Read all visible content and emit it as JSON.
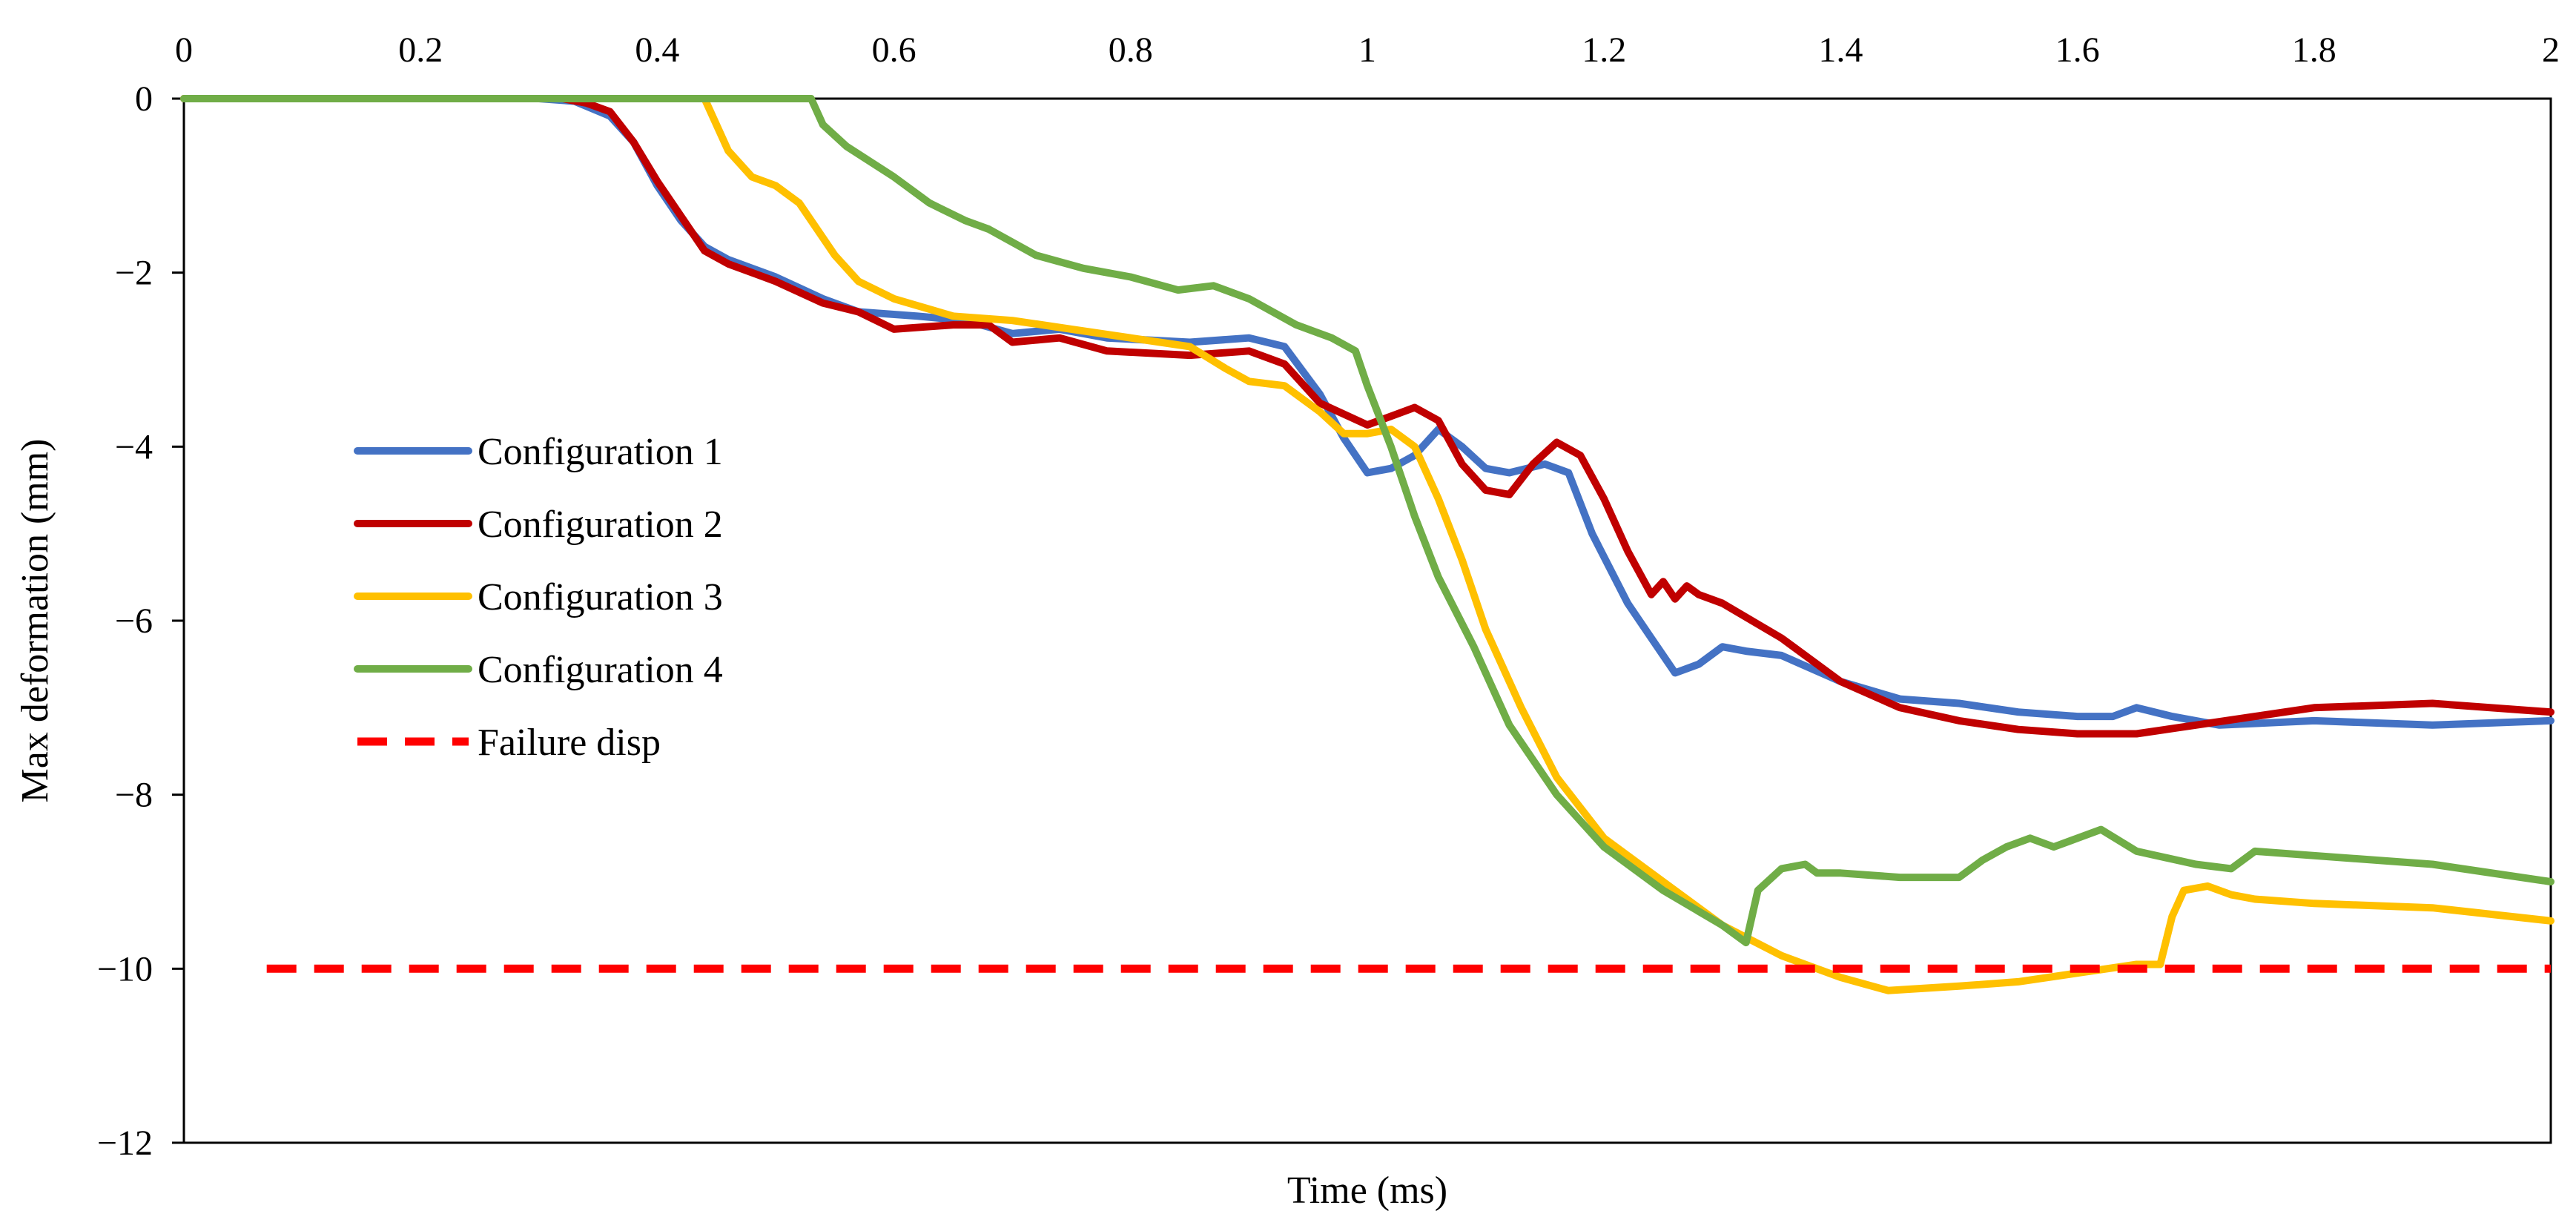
{
  "chart_data": {
    "type": "line",
    "title": "",
    "xlabel": "Time (ms)",
    "ylabel": "Max deformation (mm)",
    "xlim": [
      0,
      2
    ],
    "ylim": [
      -12,
      0
    ],
    "x_ticks": [
      0,
      0.2,
      0.4,
      0.6,
      0.8,
      1,
      1.2,
      1.4,
      1.6,
      1.8,
      2
    ],
    "x_tick_labels": [
      "0",
      "0.2",
      "0.4",
      "0.6",
      "0.8",
      "1",
      "1.2",
      "1.4",
      "1.6",
      "1.8",
      "2"
    ],
    "y_ticks": [
      0,
      -2,
      -4,
      -6,
      -8,
      -10,
      -12
    ],
    "y_tick_labels": [
      "0",
      "−2",
      "−4",
      "−6",
      "−8",
      "−10",
      "−12"
    ],
    "x_axis_position": "top",
    "grid": false,
    "legend_position": "left-middle",
    "series": [
      {
        "name": "Configuration 1",
        "color": "#4472C4",
        "style": "solid",
        "points": [
          [
            0,
            0
          ],
          [
            0.3,
            0
          ],
          [
            0.33,
            -0.03
          ],
          [
            0.36,
            -0.2
          ],
          [
            0.38,
            -0.5
          ],
          [
            0.4,
            -1.0
          ],
          [
            0.42,
            -1.4
          ],
          [
            0.44,
            -1.7
          ],
          [
            0.46,
            -1.85
          ],
          [
            0.5,
            -2.05
          ],
          [
            0.54,
            -2.3
          ],
          [
            0.57,
            -2.45
          ],
          [
            0.62,
            -2.5
          ],
          [
            0.66,
            -2.55
          ],
          [
            0.7,
            -2.7
          ],
          [
            0.74,
            -2.65
          ],
          [
            0.78,
            -2.75
          ],
          [
            0.85,
            -2.8
          ],
          [
            0.9,
            -2.75
          ],
          [
            0.93,
            -2.85
          ],
          [
            0.96,
            -3.4
          ],
          [
            0.98,
            -3.9
          ],
          [
            1.0,
            -4.3
          ],
          [
            1.02,
            -4.25
          ],
          [
            1.04,
            -4.1
          ],
          [
            1.06,
            -3.8
          ],
          [
            1.08,
            -4.0
          ],
          [
            1.1,
            -4.25
          ],
          [
            1.12,
            -4.3
          ],
          [
            1.15,
            -4.2
          ],
          [
            1.17,
            -4.3
          ],
          [
            1.19,
            -5.0
          ],
          [
            1.22,
            -5.8
          ],
          [
            1.24,
            -6.2
          ],
          [
            1.26,
            -6.6
          ],
          [
            1.28,
            -6.5
          ],
          [
            1.3,
            -6.3
          ],
          [
            1.32,
            -6.35
          ],
          [
            1.35,
            -6.4
          ],
          [
            1.4,
            -6.7
          ],
          [
            1.45,
            -6.9
          ],
          [
            1.5,
            -6.95
          ],
          [
            1.55,
            -7.05
          ],
          [
            1.6,
            -7.1
          ],
          [
            1.63,
            -7.1
          ],
          [
            1.65,
            -7.0
          ],
          [
            1.68,
            -7.1
          ],
          [
            1.72,
            -7.2
          ],
          [
            1.8,
            -7.15
          ],
          [
            1.9,
            -7.2
          ],
          [
            2.0,
            -7.15
          ]
        ]
      },
      {
        "name": "Configuration 2",
        "color": "#C00000",
        "style": "solid",
        "points": [
          [
            0,
            0
          ],
          [
            0.32,
            0
          ],
          [
            0.34,
            -0.05
          ],
          [
            0.36,
            -0.15
          ],
          [
            0.38,
            -0.5
          ],
          [
            0.4,
            -0.95
          ],
          [
            0.42,
            -1.35
          ],
          [
            0.44,
            -1.75
          ],
          [
            0.46,
            -1.9
          ],
          [
            0.5,
            -2.1
          ],
          [
            0.54,
            -2.35
          ],
          [
            0.57,
            -2.45
          ],
          [
            0.6,
            -2.65
          ],
          [
            0.65,
            -2.6
          ],
          [
            0.68,
            -2.6
          ],
          [
            0.7,
            -2.8
          ],
          [
            0.74,
            -2.75
          ],
          [
            0.78,
            -2.9
          ],
          [
            0.85,
            -2.95
          ],
          [
            0.9,
            -2.9
          ],
          [
            0.93,
            -3.05
          ],
          [
            0.96,
            -3.5
          ],
          [
            1.0,
            -3.75
          ],
          [
            1.02,
            -3.65
          ],
          [
            1.04,
            -3.55
          ],
          [
            1.06,
            -3.7
          ],
          [
            1.08,
            -4.2
          ],
          [
            1.1,
            -4.5
          ],
          [
            1.12,
            -4.55
          ],
          [
            1.14,
            -4.2
          ],
          [
            1.16,
            -3.95
          ],
          [
            1.18,
            -4.1
          ],
          [
            1.2,
            -4.6
          ],
          [
            1.22,
            -5.2
          ],
          [
            1.24,
            -5.7
          ],
          [
            1.25,
            -5.55
          ],
          [
            1.26,
            -5.75
          ],
          [
            1.27,
            -5.6
          ],
          [
            1.28,
            -5.7
          ],
          [
            1.3,
            -5.8
          ],
          [
            1.35,
            -6.2
          ],
          [
            1.4,
            -6.7
          ],
          [
            1.45,
            -7.0
          ],
          [
            1.5,
            -7.15
          ],
          [
            1.55,
            -7.25
          ],
          [
            1.6,
            -7.3
          ],
          [
            1.65,
            -7.3
          ],
          [
            1.7,
            -7.2
          ],
          [
            1.75,
            -7.1
          ],
          [
            1.8,
            -7.0
          ],
          [
            1.9,
            -6.95
          ],
          [
            2.0,
            -7.05
          ]
        ]
      },
      {
        "name": "Configuration 3",
        "color": "#FFC000",
        "style": "solid",
        "points": [
          [
            0,
            0
          ],
          [
            0.44,
            0
          ],
          [
            0.46,
            -0.6
          ],
          [
            0.48,
            -0.9
          ],
          [
            0.5,
            -1.0
          ],
          [
            0.52,
            -1.2
          ],
          [
            0.55,
            -1.8
          ],
          [
            0.57,
            -2.1
          ],
          [
            0.6,
            -2.3
          ],
          [
            0.65,
            -2.5
          ],
          [
            0.7,
            -2.55
          ],
          [
            0.75,
            -2.65
          ],
          [
            0.8,
            -2.75
          ],
          [
            0.85,
            -2.85
          ],
          [
            0.88,
            -3.1
          ],
          [
            0.9,
            -3.25
          ],
          [
            0.93,
            -3.3
          ],
          [
            0.96,
            -3.6
          ],
          [
            0.98,
            -3.85
          ],
          [
            1.0,
            -3.85
          ],
          [
            1.02,
            -3.8
          ],
          [
            1.04,
            -4.0
          ],
          [
            1.06,
            -4.6
          ],
          [
            1.08,
            -5.3
          ],
          [
            1.1,
            -6.1
          ],
          [
            1.13,
            -7.0
          ],
          [
            1.16,
            -7.8
          ],
          [
            1.2,
            -8.5
          ],
          [
            1.25,
            -9.0
          ],
          [
            1.3,
            -9.5
          ],
          [
            1.35,
            -9.85
          ],
          [
            1.4,
            -10.1
          ],
          [
            1.44,
            -10.25
          ],
          [
            1.5,
            -10.2
          ],
          [
            1.55,
            -10.15
          ],
          [
            1.6,
            -10.05
          ],
          [
            1.65,
            -9.95
          ],
          [
            1.67,
            -9.95
          ],
          [
            1.68,
            -9.4
          ],
          [
            1.69,
            -9.1
          ],
          [
            1.71,
            -9.05
          ],
          [
            1.73,
            -9.15
          ],
          [
            1.75,
            -9.2
          ],
          [
            1.8,
            -9.25
          ],
          [
            1.9,
            -9.3
          ],
          [
            2.0,
            -9.45
          ]
        ]
      },
      {
        "name": "Configuration 4",
        "color": "#70AD47",
        "style": "solid",
        "points": [
          [
            0,
            0
          ],
          [
            0.53,
            0
          ],
          [
            0.54,
            -0.3
          ],
          [
            0.56,
            -0.55
          ],
          [
            0.6,
            -0.9
          ],
          [
            0.63,
            -1.2
          ],
          [
            0.66,
            -1.4
          ],
          [
            0.68,
            -1.5
          ],
          [
            0.72,
            -1.8
          ],
          [
            0.76,
            -1.95
          ],
          [
            0.8,
            -2.05
          ],
          [
            0.84,
            -2.2
          ],
          [
            0.87,
            -2.15
          ],
          [
            0.9,
            -2.3
          ],
          [
            0.94,
            -2.6
          ],
          [
            0.97,
            -2.75
          ],
          [
            0.99,
            -2.9
          ],
          [
            1.0,
            -3.3
          ],
          [
            1.02,
            -4.0
          ],
          [
            1.04,
            -4.8
          ],
          [
            1.06,
            -5.5
          ],
          [
            1.09,
            -6.3
          ],
          [
            1.12,
            -7.2
          ],
          [
            1.16,
            -8.0
          ],
          [
            1.2,
            -8.6
          ],
          [
            1.25,
            -9.1
          ],
          [
            1.3,
            -9.5
          ],
          [
            1.32,
            -9.7
          ],
          [
            1.33,
            -9.1
          ],
          [
            1.35,
            -8.85
          ],
          [
            1.37,
            -8.8
          ],
          [
            1.38,
            -8.9
          ],
          [
            1.4,
            -8.9
          ],
          [
            1.45,
            -8.95
          ],
          [
            1.5,
            -8.95
          ],
          [
            1.52,
            -8.75
          ],
          [
            1.54,
            -8.6
          ],
          [
            1.56,
            -8.5
          ],
          [
            1.58,
            -8.6
          ],
          [
            1.6,
            -8.5
          ],
          [
            1.62,
            -8.4
          ],
          [
            1.65,
            -8.65
          ],
          [
            1.7,
            -8.8
          ],
          [
            1.73,
            -8.85
          ],
          [
            1.75,
            -8.65
          ],
          [
            1.8,
            -8.7
          ],
          [
            1.9,
            -8.8
          ],
          [
            2.0,
            -9.0
          ]
        ]
      },
      {
        "name": "Failure disp",
        "color": "#FF0000",
        "style": "dashed",
        "points": [
          [
            0.07,
            -10
          ],
          [
            2.0,
            -10
          ]
        ]
      }
    ]
  }
}
